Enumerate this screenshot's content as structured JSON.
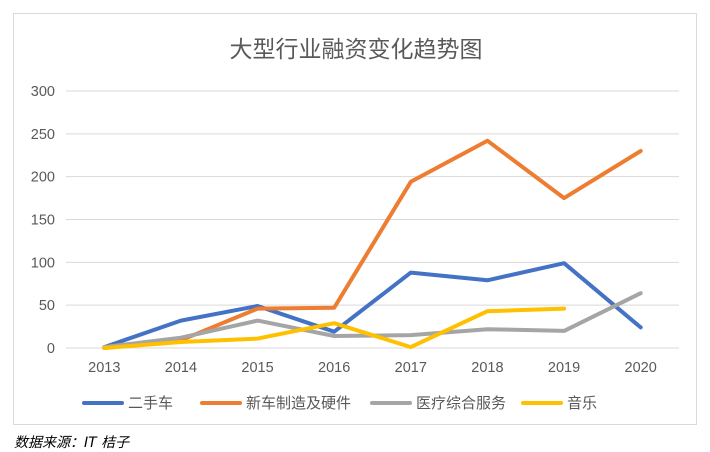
{
  "chart_data": {
    "type": "line",
    "title": "大型行业融资变化趋势图",
    "xlabel": "",
    "ylabel": "",
    "categories": [
      "2013",
      "2014",
      "2015",
      "2016",
      "2017",
      "2018",
      "2019",
      "2020"
    ],
    "ylim": [
      0,
      300
    ],
    "yticks": [
      0,
      50,
      100,
      150,
      200,
      250,
      300
    ],
    "grid": true,
    "legend_position": "bottom",
    "series": [
      {
        "name": "二手车",
        "color": "#4472c4",
        "values": [
          1,
          32,
          49,
          19,
          88,
          79,
          99,
          24
        ]
      },
      {
        "name": "新车制造及硬件",
        "color": "#ed7d31",
        "values": [
          0,
          9,
          46,
          47,
          194,
          242,
          175,
          230
        ]
      },
      {
        "name": "医疗综合服务",
        "color": "#a5a5a5",
        "values": [
          1,
          12,
          32,
          14,
          15,
          22,
          20,
          64
        ]
      },
      {
        "name": "音乐",
        "color": "#ffc000",
        "values": [
          0,
          7,
          11,
          29,
          1,
          43,
          46,
          null
        ]
      }
    ]
  },
  "source_note": "数据来源：IT 桔子"
}
